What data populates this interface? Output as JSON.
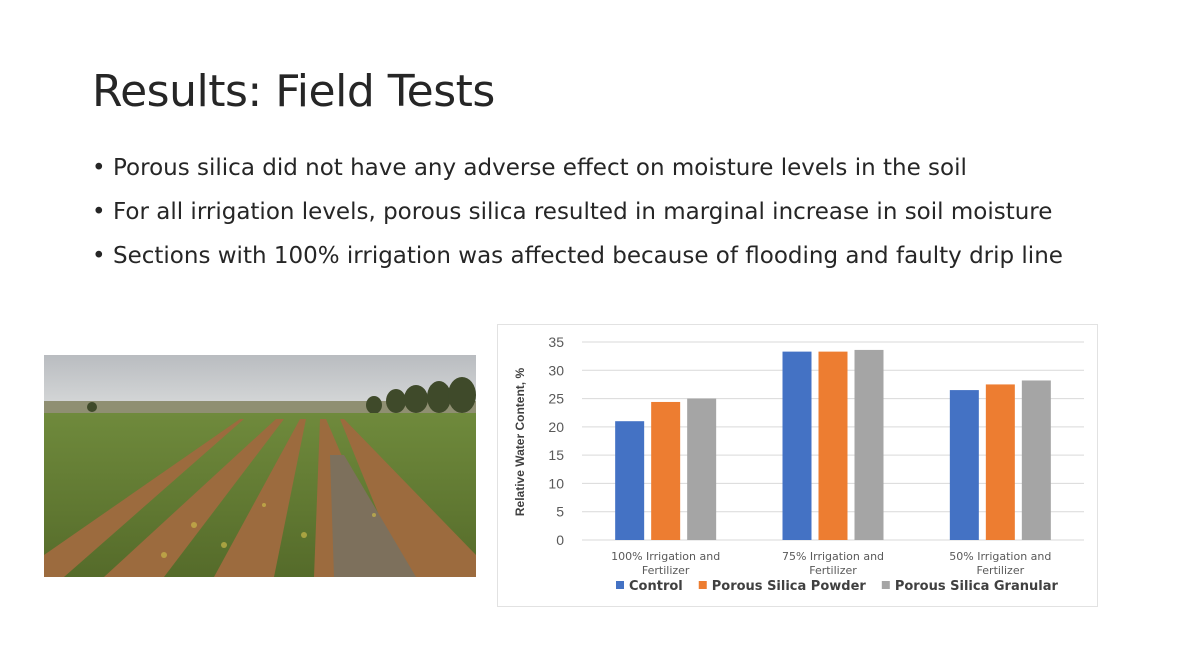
{
  "slide": {
    "title": "Results: Field Tests",
    "bullets": [
      "Porous silica did not have any adverse effect on moisture levels in the soil",
      "For all irrigation levels, porous silica resulted in marginal increase in soil moisture",
      "Sections with 100% irrigation was affected because of flooding and faulty drip line"
    ],
    "bullet_glyph": "•"
  },
  "chart_data": {
    "type": "bar",
    "categories": [
      [
        "100% Irrigation and",
        "Fertilizer"
      ],
      [
        "75% Irrigation and",
        "Fertilizer"
      ],
      [
        "50% Irrigation and",
        "Fertilizer"
      ]
    ],
    "series": [
      {
        "name": "Control",
        "color": "#4472C4",
        "values": [
          21,
          33.3,
          26.5
        ]
      },
      {
        "name": "Porous Silica Powder",
        "color": "#ED7D31",
        "values": [
          24.4,
          33.3,
          27.5
        ]
      },
      {
        "name": "Porous Silica Granular",
        "color": "#A5A5A5",
        "values": [
          25,
          33.6,
          28.2
        ]
      }
    ],
    "title": "",
    "xlabel": "",
    "ylabel": "Relative Water Content, %",
    "ylim": [
      0,
      35
    ],
    "yticks": [
      0,
      5,
      10,
      15,
      20,
      25,
      30,
      35
    ],
    "grid": true,
    "legend": "bottom"
  }
}
